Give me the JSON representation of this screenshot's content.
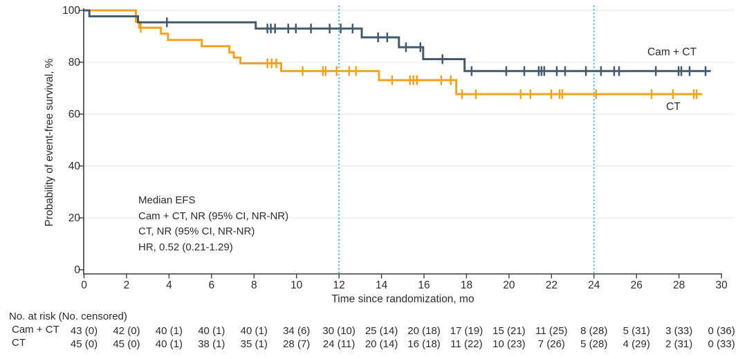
{
  "page": {
    "background": "#ffffff",
    "text_color": "#2b2b2b"
  },
  "chart_data": {
    "type": "line",
    "subtype": "kaplan-meier-step",
    "title": "",
    "xlabel": "Time since randomization, mo",
    "ylabel": "Probability of event-free survival, %",
    "xlim": [
      0,
      30
    ],
    "ylim": [
      0,
      100
    ],
    "x_ticks": [
      0,
      2,
      4,
      6,
      8,
      10,
      12,
      14,
      16,
      18,
      20,
      22,
      24,
      26,
      28,
      30
    ],
    "y_ticks": [
      0,
      20,
      40,
      60,
      80,
      100
    ],
    "grid": "horizontal-only",
    "colors": {
      "axis": "#3c3c3c",
      "grid": "#e9e9e9",
      "reference_line": "#3cb4e5",
      "text": "#2b2b2b"
    },
    "reference_lines_x": [
      12,
      24
    ],
    "annotation": {
      "lines": [
        "Median EFS",
        "Cam + CT, NR (95% CI, NR-NR)",
        "CT, NR (95% CI, NR-NR)",
        "HR, 0.52 (0.21-1.29)"
      ]
    },
    "series": [
      {
        "name": "Cam + CT",
        "color": "#435a6d",
        "steps": [
          [
            0,
            100
          ],
          [
            0.25,
            97.7
          ],
          [
            2.54,
            95.4
          ],
          [
            8.08,
            93.0
          ],
          [
            13.07,
            89.6
          ],
          [
            14.82,
            85.8
          ],
          [
            15.96,
            81.2
          ],
          [
            17.91,
            76.6
          ]
        ],
        "end": 29.5,
        "censors": [
          [
            3.9,
            95.4
          ],
          [
            8.63,
            93.0
          ],
          [
            8.79,
            93.0
          ],
          [
            8.99,
            93.0
          ],
          [
            9.61,
            93.0
          ],
          [
            9.97,
            93.0
          ],
          [
            10.68,
            93.0
          ],
          [
            11.56,
            93.0
          ],
          [
            12.08,
            93.0
          ],
          [
            12.64,
            93.0
          ],
          [
            13.84,
            89.6
          ],
          [
            14.27,
            89.6
          ],
          [
            15.15,
            85.8
          ],
          [
            15.83,
            85.8
          ],
          [
            16.87,
            81.2
          ],
          [
            18.24,
            76.6
          ],
          [
            19.87,
            76.6
          ],
          [
            20.72,
            76.6
          ],
          [
            21.4,
            76.6
          ],
          [
            21.53,
            76.6
          ],
          [
            21.66,
            76.6
          ],
          [
            22.25,
            76.6
          ],
          [
            22.64,
            76.6
          ],
          [
            23.62,
            76.6
          ],
          [
            24.33,
            76.6
          ],
          [
            24.95,
            76.6
          ],
          [
            25.18,
            76.6
          ],
          [
            26.91,
            76.6
          ],
          [
            27.98,
            76.6
          ],
          [
            28.11,
            76.6
          ],
          [
            28.5,
            76.6
          ],
          [
            29.25,
            76.6
          ]
        ]
      },
      {
        "name": "CT",
        "color": "#f1a31f",
        "steps": [
          [
            0,
            100
          ],
          [
            2.44,
            95.6
          ],
          [
            2.6,
            93.3
          ],
          [
            3.62,
            91.0
          ],
          [
            3.95,
            88.6
          ],
          [
            5.54,
            86.2
          ],
          [
            6.84,
            83.8
          ],
          [
            7.05,
            81.8
          ],
          [
            7.36,
            79.6
          ],
          [
            9.28,
            76.6
          ],
          [
            13.88,
            73.1
          ],
          [
            17.52,
            67.7
          ]
        ],
        "end": 29.1,
        "censors": [
          [
            2.67,
            93.3
          ],
          [
            8.63,
            79.6
          ],
          [
            8.83,
            79.6
          ],
          [
            9.05,
            79.6
          ],
          [
            10.29,
            76.6
          ],
          [
            11.24,
            76.6
          ],
          [
            11.37,
            76.6
          ],
          [
            11.89,
            76.6
          ],
          [
            12.48,
            76.6
          ],
          [
            12.8,
            76.6
          ],
          [
            14.5,
            73.1
          ],
          [
            15.34,
            73.1
          ],
          [
            15.5,
            73.1
          ],
          [
            15.67,
            73.1
          ],
          [
            16.81,
            73.1
          ],
          [
            17.26,
            73.1
          ],
          [
            17.79,
            67.7
          ],
          [
            18.44,
            67.7
          ],
          [
            20.55,
            67.7
          ],
          [
            21.01,
            67.7
          ],
          [
            21.99,
            67.7
          ],
          [
            22.38,
            67.7
          ],
          [
            22.51,
            67.7
          ],
          [
            24.1,
            67.7
          ],
          [
            26.71,
            67.7
          ],
          [
            27.72,
            67.7
          ],
          [
            28.7,
            67.7
          ],
          [
            28.83,
            67.7
          ]
        ]
      }
    ],
    "risk_table": {
      "header": "No. at risk (No. censored)",
      "times": [
        0,
        2,
        4,
        6,
        8,
        10,
        12,
        14,
        16,
        18,
        20,
        22,
        24,
        26,
        28,
        30
      ],
      "rows": [
        {
          "name": "Cam + CT",
          "values": [
            "43 (0)",
            "42 (0)",
            "40 (1)",
            "40 (1)",
            "40 (1)",
            "34 (6)",
            "30 (10)",
            "25 (14)",
            "20 (18)",
            "17 (19)",
            "15 (21)",
            "11 (25)",
            "8 (28)",
            "5 (31)",
            "3 (33)",
            "0 (36)"
          ]
        },
        {
          "name": "CT",
          "values": [
            "45 (0)",
            "45 (0)",
            "40 (1)",
            "38 (1)",
            "35 (1)",
            "28 (7)",
            "24 (11)",
            "20 (14)",
            "16 (18)",
            "11 (22)",
            "10 (23)",
            "7 (26)",
            "5 (28)",
            "4 (29)",
            "2 (31)",
            "0 (33)"
          ]
        }
      ]
    }
  }
}
